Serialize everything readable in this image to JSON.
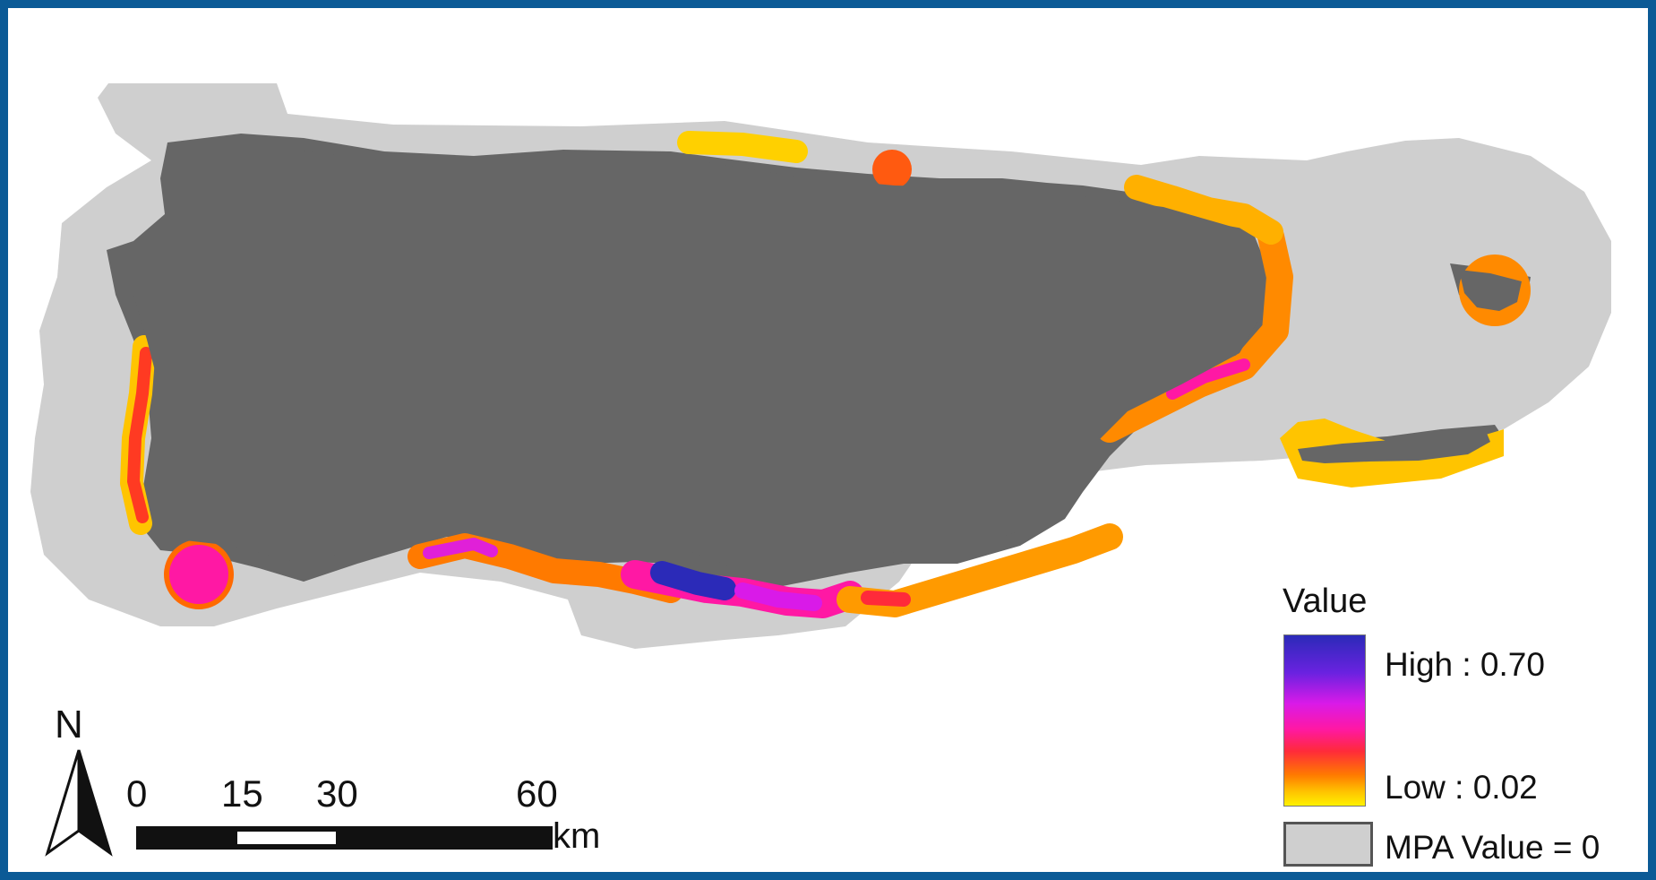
{
  "legend": {
    "title": "Value",
    "high_label": "High : 0.70",
    "low_label": "Low : 0.02",
    "mpa_label": "MPA Value = 0",
    "ramp_colors": [
      "#2b2ab8",
      "#6a22e0",
      "#d91ae8",
      "#ff18a4",
      "#ff2a3a",
      "#ff7a00",
      "#ffc400",
      "#fff200"
    ],
    "mpa_color": "#cfcfcf"
  },
  "north_arrow": {
    "label": "N"
  },
  "scale_bar": {
    "ticks": [
      "0",
      "15",
      "30",
      "60"
    ],
    "unit": "km"
  },
  "colors": {
    "frame": "#0b5a96",
    "land": "#666666",
    "mpa_zone": "#cfcfcf",
    "background": "#ffffff"
  }
}
